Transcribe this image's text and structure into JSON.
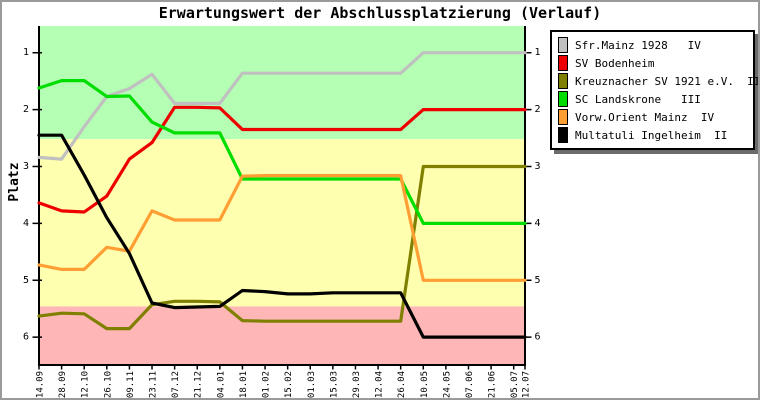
{
  "chart_data": {
    "type": "line",
    "title": "Erwartungswert der Abschlussplatzierung (Verlauf)",
    "ylabel": "Platz",
    "y_ticks": [
      1,
      2,
      3,
      4,
      5,
      6
    ],
    "y_axis_inverted": true,
    "ylim": [
      0.53,
      6.49
    ],
    "grid": false,
    "legend_position": "top-right",
    "x_labels": [
      "14.09",
      "28.09",
      "12.10",
      "26.10",
      "09.11",
      "23.11",
      "07.12",
      "21.12",
      "04.01",
      "18.01",
      "01.02",
      "15.02",
      "01.03",
      "15.03",
      "29.03",
      "12.04",
      "26.04",
      "10.05",
      "24.05",
      "07.06",
      "21.06",
      "05.07",
      "12.07"
    ],
    "x_day_offsets": [
      0,
      14,
      28,
      42,
      56,
      70,
      84,
      98,
      112,
      126,
      140,
      154,
      168,
      182,
      196,
      210,
      224,
      238,
      252,
      266,
      280,
      294,
      301
    ],
    "bands": [
      {
        "name": "green-zone",
        "color": "#b4ffb4",
        "from": 0.53,
        "to": 2.52
      },
      {
        "name": "yellow-zone",
        "color": "#ffffb0",
        "from": 2.52,
        "to": 5.46
      },
      {
        "name": "pink-zone",
        "color": "#ffb6b6",
        "from": 5.46,
        "to": 6.49
      }
    ],
    "series": [
      {
        "key": "sfr-mainz-1928",
        "name": "Sfr.Mainz 1928   IV",
        "color": "#c0c0c0",
        "values": [
          2.84,
          2.87,
          2.3,
          1.77,
          1.63,
          1.38,
          1.89,
          1.89,
          1.89,
          1.36,
          1.36,
          1.36,
          1.36,
          1.36,
          1.36,
          1.36,
          1.36,
          1,
          1,
          1,
          1,
          1,
          1
        ]
      },
      {
        "key": "sv-bodenheim",
        "name": "SV Bodenheim",
        "color": "#ee0000",
        "values": [
          3.64,
          3.78,
          3.8,
          3.52,
          2.87,
          2.58,
          1.96,
          1.96,
          1.97,
          2.35,
          2.35,
          2.35,
          2.35,
          2.35,
          2.35,
          2.35,
          2.35,
          2,
          2,
          2,
          2,
          2,
          2
        ]
      },
      {
        "key": "kreuznacher-sv-1921",
        "name": "Kreuznacher SV 1921 e.V.  III",
        "color": "#808000",
        "values": [
          5.63,
          5.58,
          5.59,
          5.85,
          5.85,
          5.43,
          5.37,
          5.37,
          5.38,
          5.71,
          5.72,
          5.72,
          5.72,
          5.72,
          5.72,
          5.72,
          5.72,
          3,
          3,
          3,
          3,
          3,
          3
        ]
      },
      {
        "key": "sc-landskrone",
        "name": "SC Landskrone   III",
        "color": "#00dd00",
        "values": [
          1.62,
          1.49,
          1.49,
          1.77,
          1.76,
          2.22,
          2.41,
          2.41,
          2.41,
          3.22,
          3.22,
          3.22,
          3.22,
          3.22,
          3.22,
          3.22,
          3.22,
          4,
          4,
          4,
          4,
          4,
          4
        ]
      },
      {
        "key": "vorw-orient-mainz",
        "name": "Vorw.Orient Mainz  IV",
        "color": "#ff9e33",
        "values": [
          4.73,
          4.81,
          4.81,
          4.42,
          4.49,
          3.78,
          3.94,
          3.94,
          3.94,
          3.17,
          3.16,
          3.16,
          3.16,
          3.16,
          3.16,
          3.16,
          3.16,
          5,
          5,
          5,
          5,
          5,
          5
        ]
      },
      {
        "key": "multatuli-ingelheim",
        "name": "Multatuli Ingelheim  II",
        "color": "#000000",
        "values": [
          2.45,
          2.45,
          3.15,
          3.9,
          4.53,
          5.4,
          5.48,
          5.47,
          5.46,
          5.18,
          5.2,
          5.24,
          5.24,
          5.22,
          5.22,
          5.22,
          5.22,
          6,
          6,
          6,
          6,
          6,
          6
        ]
      }
    ]
  }
}
